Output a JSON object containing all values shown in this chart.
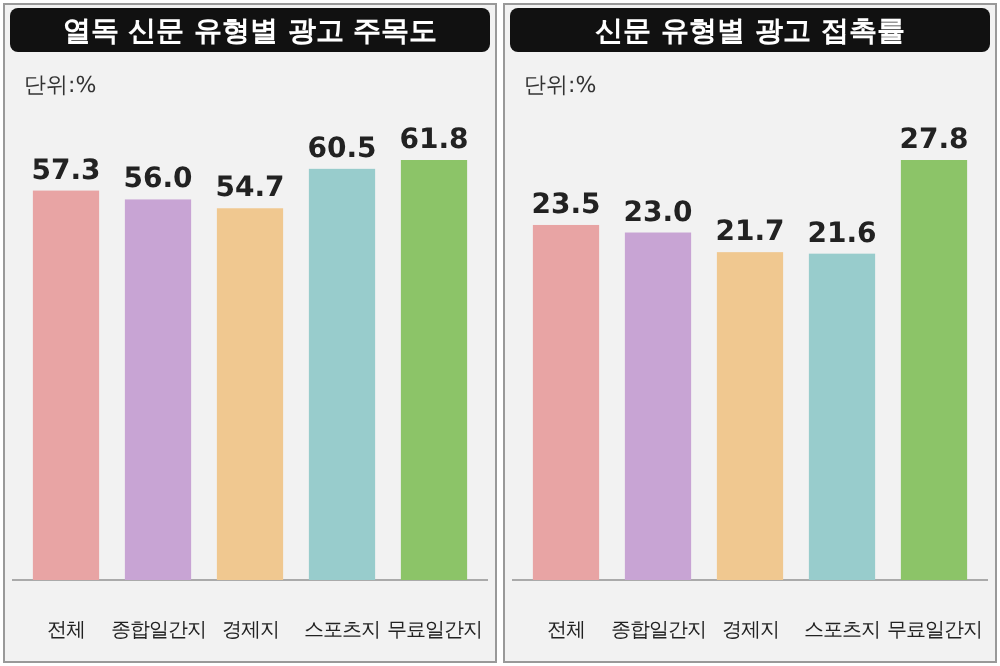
{
  "chart_data": [
    {
      "type": "bar",
      "title": "열독 신문 유형별 광고 주목도",
      "annotations": [
        "단위:%"
      ],
      "categories": [
        "전체",
        "종합일간지",
        "경제지",
        "스포츠지",
        "무료일간지"
      ],
      "values": [
        57.3,
        56.0,
        54.7,
        60.5,
        61.8
      ],
      "value_labels": [
        "57.3",
        "56.0",
        "54.7",
        "60.5",
        "61.8"
      ],
      "colors": [
        "#e8a4a4",
        "#c8a4d4",
        "#f0c890",
        "#98cccc",
        "#8cc468"
      ]
    },
    {
      "type": "bar",
      "title": "신문 유형별 광고 접촉률",
      "annotations": [
        "단위:%"
      ],
      "categories": [
        "전체",
        "종합일간지",
        "경제지",
        "스포츠지",
        "무료일간지"
      ],
      "values": [
        23.5,
        23.0,
        21.7,
        21.6,
        27.8
      ],
      "value_labels": [
        "23.5",
        "23.0",
        "21.7",
        "21.6",
        "27.8"
      ],
      "colors": [
        "#e8a4a4",
        "#c8a4d4",
        "#f0c890",
        "#98cccc",
        "#8cc468"
      ]
    }
  ]
}
